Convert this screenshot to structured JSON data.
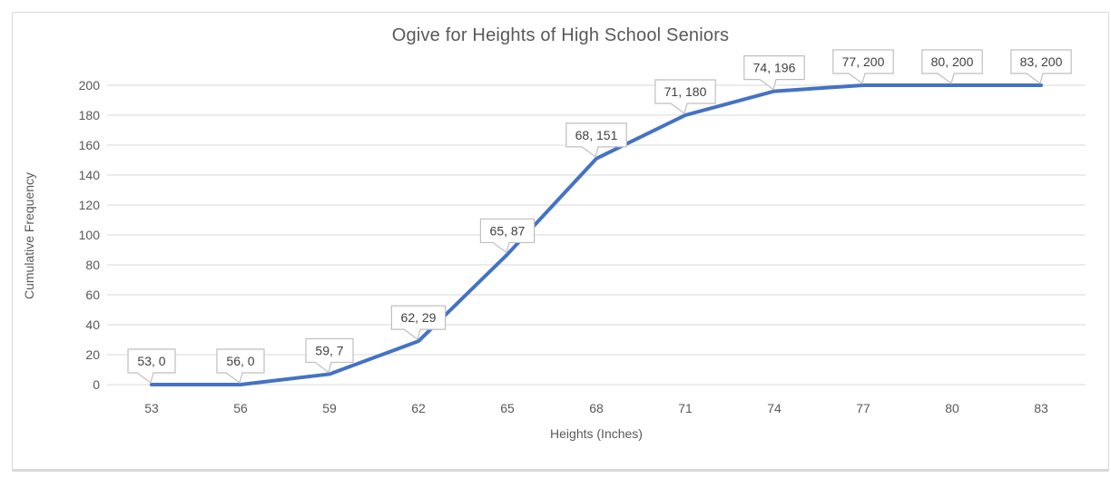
{
  "chart_data": {
    "type": "line",
    "title": "Ogive for Heights of High School Seniors",
    "xlabel": "Heights (Inches)",
    "ylabel": "Cumulative Frequency",
    "x": [
      53,
      56,
      59,
      62,
      65,
      68,
      71,
      74,
      77,
      80,
      83
    ],
    "y": [
      0,
      0,
      7,
      29,
      87,
      151,
      180,
      196,
      200,
      200,
      200
    ],
    "data_labels": [
      "53, 0",
      "56, 0",
      "59, 7",
      "62, 29",
      "65, 87",
      "68, 151",
      "71, 180",
      "74, 196",
      "77, 200",
      "80, 200",
      "83, 200"
    ],
    "data_label_style": "callout",
    "y_ticks": [
      0,
      20,
      40,
      60,
      80,
      100,
      120,
      140,
      160,
      180,
      200
    ],
    "ylim": [
      0,
      200
    ],
    "grid": "horizontal",
    "legend": "none",
    "colors": {
      "line": "#4472C4",
      "gridline": "#d9d9d9",
      "axis_text": "#595959",
      "callout_border": "#bfbfbf",
      "callout_fill": "#ffffff",
      "callout_text": "#404040",
      "frame_border": "#d9d9d9"
    }
  }
}
